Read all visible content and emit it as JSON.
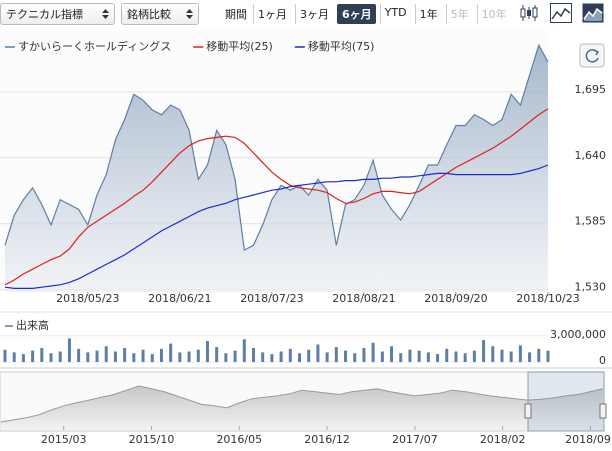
{
  "toolbar": {
    "indicator": "テクニカル指標",
    "compare": "銘柄比較",
    "period_label": "期間",
    "periods": [
      {
        "label": "1ヶ月",
        "state": "normal"
      },
      {
        "label": "3ヶ月",
        "state": "normal"
      },
      {
        "label": "6ヶ月",
        "state": "selected"
      },
      {
        "label": "YTD",
        "state": "normal"
      },
      {
        "label": "1年",
        "state": "normal"
      },
      {
        "label": "5年",
        "state": "disabled"
      },
      {
        "label": "10年",
        "state": "disabled"
      }
    ]
  },
  "chart_data": [
    {
      "type": "line",
      "categories": [
        null,
        null,
        null,
        null,
        null,
        null,
        null,
        null,
        null,
        "2018/05/23",
        null,
        null,
        null,
        null,
        null,
        null,
        null,
        null,
        null,
        "2018/06/21",
        null,
        null,
        null,
        null,
        null,
        null,
        null,
        null,
        null,
        "2018/07/23",
        null,
        null,
        null,
        null,
        null,
        null,
        null,
        null,
        null,
        "2018/08/21",
        null,
        null,
        null,
        null,
        null,
        null,
        null,
        null,
        null,
        "2018/09/20",
        null,
        null,
        null,
        null,
        null,
        null,
        null,
        null,
        null,
        "2018/10/23"
      ],
      "series": [
        {
          "name": "すかいらーくホールディングス",
          "color": "#5b7fa6",
          "area": true,
          "values": [
            1567,
            1592,
            1605,
            1615,
            1601,
            1584,
            1605,
            1601,
            1597,
            1584,
            1609,
            1626,
            1655,
            1672,
            1693,
            1688,
            1680,
            1676,
            1684,
            1680,
            1663,
            1622,
            1634,
            1663,
            1651,
            1622,
            1563,
            1567,
            1584,
            1605,
            1617,
            1613,
            1617,
            1609,
            1622,
            1613,
            1567,
            1601,
            1605,
            1617,
            1638,
            1609,
            1597,
            1588,
            1601,
            1617,
            1634,
            1634,
            1651,
            1667,
            1667,
            1676,
            1672,
            1667,
            1672,
            1693,
            1684,
            1709,
            1734,
            1720
          ]
        },
        {
          "name": "移動平均(25)",
          "color": "#e0201b",
          "area": false,
          "values": [
            1534,
            1538,
            1543,
            1547,
            1551,
            1555,
            1558,
            1564,
            1574,
            1582,
            1587,
            1592,
            1597,
            1602,
            1608,
            1613,
            1620,
            1628,
            1636,
            1644,
            1650,
            1654,
            1656,
            1657,
            1658,
            1657,
            1652,
            1644,
            1636,
            1628,
            1622,
            1617,
            1615,
            1614,
            1613,
            1611,
            1606,
            1602,
            1603,
            1606,
            1610,
            1612,
            1612,
            1611,
            1610,
            1612,
            1617,
            1622,
            1627,
            1632,
            1636,
            1640,
            1644,
            1648,
            1653,
            1658,
            1664,
            1670,
            1676,
            1681
          ]
        },
        {
          "name": "移動平均(75)",
          "color": "#1d2ccf",
          "area": false,
          "values": [
            1532,
            1531,
            1531,
            1531,
            1532,
            1533,
            1534,
            1536,
            1539,
            1543,
            1547,
            1551,
            1555,
            1559,
            1564,
            1569,
            1574,
            1579,
            1583,
            1587,
            1591,
            1595,
            1598,
            1600,
            1602,
            1605,
            1607,
            1609,
            1611,
            1613,
            1614,
            1616,
            1617,
            1618,
            1619,
            1620,
            1620,
            1621,
            1621,
            1622,
            1622,
            1623,
            1623,
            1624,
            1624,
            1625,
            1626,
            1627,
            1627,
            1626,
            1626,
            1626,
            1626,
            1626,
            1626,
            1626,
            1627,
            1629,
            1631,
            1634
          ]
        }
      ],
      "ylim": [
        1528,
        1740
      ],
      "yticks": [
        {
          "value": 1530,
          "label": "1,530"
        },
        {
          "value": 1585,
          "label": "1,585"
        },
        {
          "value": 1640,
          "label": "1,640"
        },
        {
          "value": 1695,
          "label": "1,695"
        }
      ],
      "grid": true
    },
    {
      "type": "bar",
      "title": "出来高",
      "color": "#5b7fa6",
      "values": [
        1400000,
        1100000,
        900000,
        1300000,
        1600000,
        1000000,
        1200000,
        2700000,
        1500000,
        1100000,
        1300000,
        1800000,
        1200000,
        1600000,
        1000000,
        1400000,
        900000,
        1500000,
        2100000,
        1100000,
        1200000,
        1400000,
        2400000,
        1700000,
        1000000,
        1300000,
        2600000,
        1600000,
        1100000,
        900000,
        1200000,
        1500000,
        1000000,
        1400000,
        2000000,
        1100000,
        1700000,
        1300000,
        1000000,
        1600000,
        2200000,
        1200000,
        1800000,
        1000000,
        1400000,
        1300000,
        1100000,
        900000,
        1500000,
        1200000,
        1000000,
        1300000,
        2500000,
        1800000,
        1400000,
        1200000,
        1900000,
        1100000,
        1500000,
        1300000
      ],
      "ylim": [
        0,
        4800000
      ],
      "yticks": [
        0,
        {
          "value": 3000000,
          "label": "3,000,000"
        }
      ]
    },
    {
      "type": "area",
      "color": "#9a9a9a",
      "categories": [
        null,
        null,
        null,
        null,
        null,
        "2015/03",
        null,
        null,
        null,
        null,
        null,
        null,
        "2015/10",
        null,
        null,
        null,
        null,
        null,
        null,
        "2016/05",
        null,
        null,
        null,
        null,
        null,
        null,
        "2016/12",
        null,
        null,
        null,
        null,
        null,
        null,
        "2017/07",
        null,
        null,
        null,
        null,
        null,
        null,
        "2018/02",
        null,
        null,
        null,
        null,
        null,
        null,
        "2018/09",
        null
      ],
      "values": [
        1250,
        1280,
        1310,
        1350,
        1420,
        1480,
        1520,
        1560,
        1600,
        1640,
        1700,
        1760,
        1720,
        1680,
        1620,
        1560,
        1500,
        1480,
        1450,
        1520,
        1580,
        1600,
        1620,
        1650,
        1700,
        1680,
        1660,
        1640,
        1680,
        1700,
        1720,
        1680,
        1650,
        1620,
        1640,
        1660,
        1700,
        1680,
        1650,
        1620,
        1600,
        1580,
        1560,
        1570,
        1590,
        1620,
        1640,
        1680,
        1720
      ]
    }
  ]
}
